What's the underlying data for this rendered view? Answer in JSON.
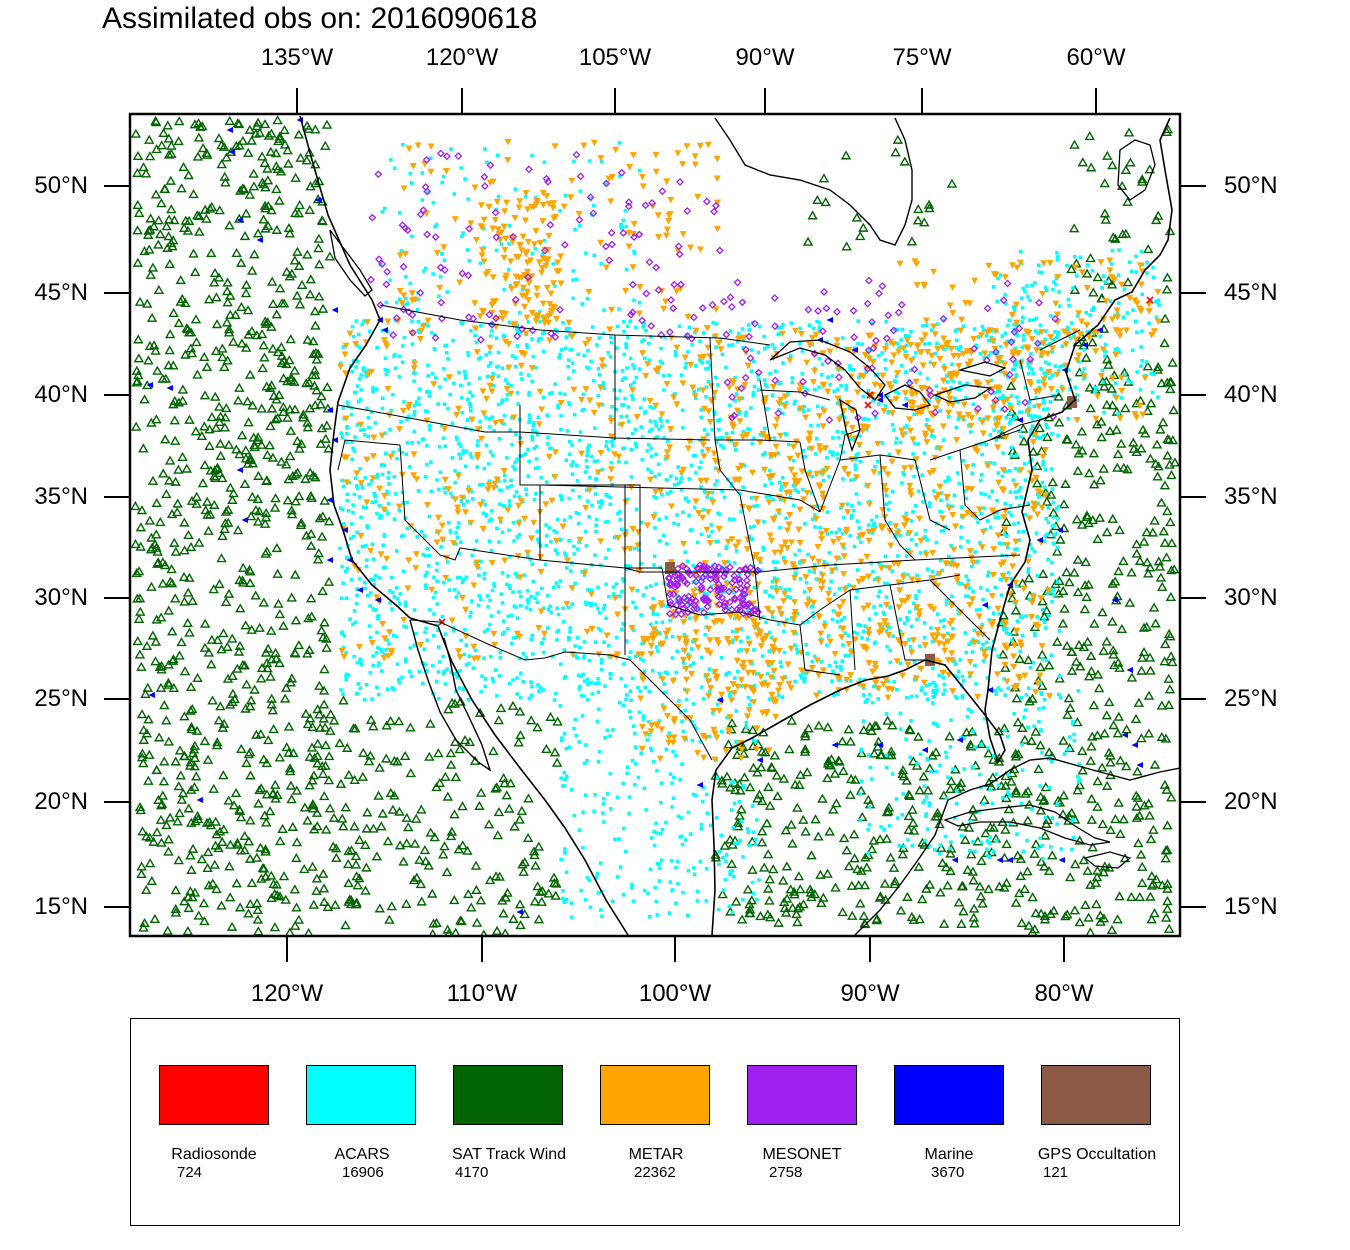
{
  "title": "Assimilated obs on: 2016090618",
  "axes": {
    "top_ticks": [
      "135°W",
      "120°W",
      "105°W",
      "90°W",
      "75°W",
      "60°W"
    ],
    "bottom_ticks": [
      "120°W",
      "110°W",
      "100°W",
      "90°W",
      "80°W"
    ],
    "left_ticks": [
      "50°N",
      "45°N",
      "40°N",
      "35°N",
      "30°N",
      "25°N",
      "20°N",
      "15°N"
    ],
    "right_ticks": [
      "50°N",
      "45°N",
      "40°N",
      "35°N",
      "30°N",
      "25°N",
      "20°N",
      "15°N"
    ]
  },
  "legend": {
    "items": [
      {
        "name": "Radiosonde",
        "count": "724",
        "color": "#ff0000"
      },
      {
        "name": "ACARS",
        "count": "16906",
        "color": "#00ffff"
      },
      {
        "name": "SAT Track Wind",
        "count": "4170",
        "color": "#006400"
      },
      {
        "name": "METAR",
        "count": "22362",
        "color": "#ffa500"
      },
      {
        "name": "MESONET",
        "count": "2758",
        "color": "#a020f0"
      },
      {
        "name": "Marine",
        "count": "3670",
        "color": "#0000ff"
      },
      {
        "name": "GPS Occultation",
        "count": "121",
        "color": "#8b5a44"
      }
    ]
  },
  "colors": {
    "radiosonde": "#ff0000",
    "acars": "#00ffff",
    "sat_track_wind": "#006400",
    "metar": "#ffa500",
    "mesonet": "#a020f0",
    "marine": "#0000ff",
    "gps": "#8b5a44"
  }
}
